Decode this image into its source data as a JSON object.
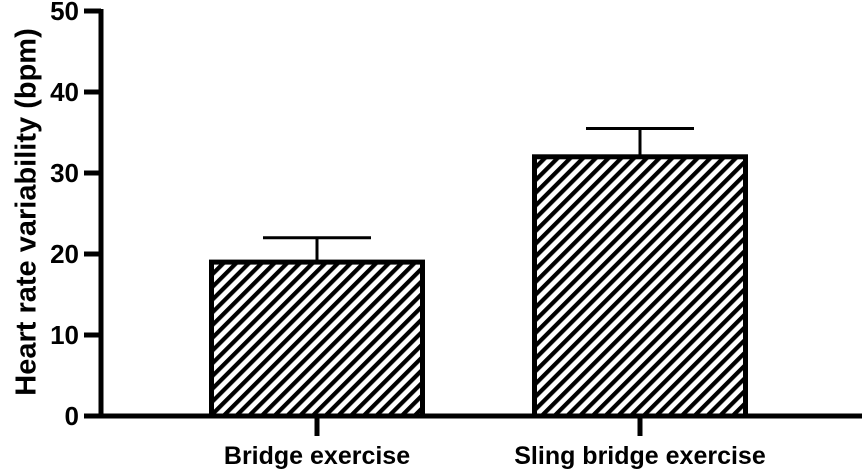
{
  "chart_data": {
    "type": "bar",
    "categories": [
      "Bridge exercise",
      "Sling bridge exercise"
    ],
    "values": [
      19,
      32
    ],
    "errors": [
      3,
      3.5
    ],
    "ylabel": "Heart rate variability (bpm)",
    "xlabel": "",
    "ylim": [
      0,
      50
    ],
    "yticks": [
      0,
      10,
      20,
      30,
      40,
      50
    ],
    "grid": false,
    "legend": "none",
    "bar_fill": "hatched",
    "colors": {
      "bar_stroke": "#000000",
      "hatch": "#000000",
      "axis": "#000000"
    }
  }
}
